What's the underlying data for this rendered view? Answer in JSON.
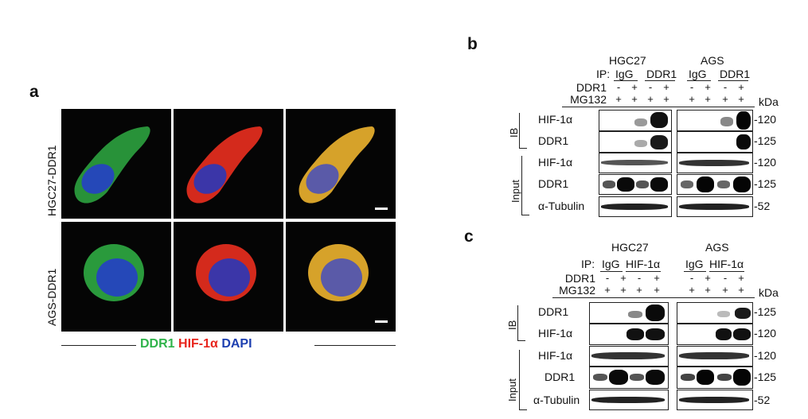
{
  "panels": {
    "a": "a",
    "b": "b",
    "c": "c"
  },
  "panel_a": {
    "rows": [
      "HGC27-DDR1",
      "AGS-DDR1"
    ],
    "legend": [
      {
        "text": "DDR1",
        "color": "#2fb34a"
      },
      {
        "text": "HIF-1α",
        "color": "#e8241c"
      },
      {
        "text": "DAPI",
        "color": "#1d3fb0"
      }
    ]
  },
  "panel_b": {
    "cell_lines": [
      "HGC27",
      "AGS"
    ],
    "ip_label": "IP:",
    "ip_groups": [
      "IgG",
      "DDR1"
    ],
    "treat_labels": [
      "DDR1",
      "MG132"
    ],
    "ddr1_signs": [
      "-",
      "+",
      "-",
      "+"
    ],
    "mg132_signs": [
      "+",
      "+",
      "+",
      "+"
    ],
    "kda": "kDa",
    "ib_label": "IB",
    "input_label": "Input",
    "ib_rows": [
      {
        "label": "HIF-1α",
        "mw": "-120"
      },
      {
        "label": "DDR1",
        "mw": "-125"
      }
    ],
    "input_rows": [
      {
        "label": "HIF-1α",
        "mw": "-120"
      },
      {
        "label": "DDR1",
        "mw": "-125"
      },
      {
        "label": "α-Tubulin",
        "mw": "-52"
      }
    ]
  },
  "panel_c": {
    "cell_lines": [
      "HGC27",
      "AGS"
    ],
    "ip_label": "IP:",
    "ip_groups": [
      "IgG",
      "HIF-1α"
    ],
    "treat_labels": [
      "DDR1",
      "MG132"
    ],
    "ddr1_signs": [
      "-",
      "+",
      "-",
      "+"
    ],
    "mg132_signs": [
      "+",
      "+",
      "+",
      "+"
    ],
    "kda": "kDa",
    "ib_label": "IB",
    "input_label": "Input",
    "ib_rows": [
      {
        "label": "DDR1",
        "mw": "-125"
      },
      {
        "label": "HIF-1α",
        "mw": "-120"
      }
    ],
    "input_rows": [
      {
        "label": "HIF-1α",
        "mw": "-120"
      },
      {
        "label": "DDR1",
        "mw": "-125"
      },
      {
        "label": "α-Tubulin",
        "mw": "-52"
      }
    ]
  }
}
